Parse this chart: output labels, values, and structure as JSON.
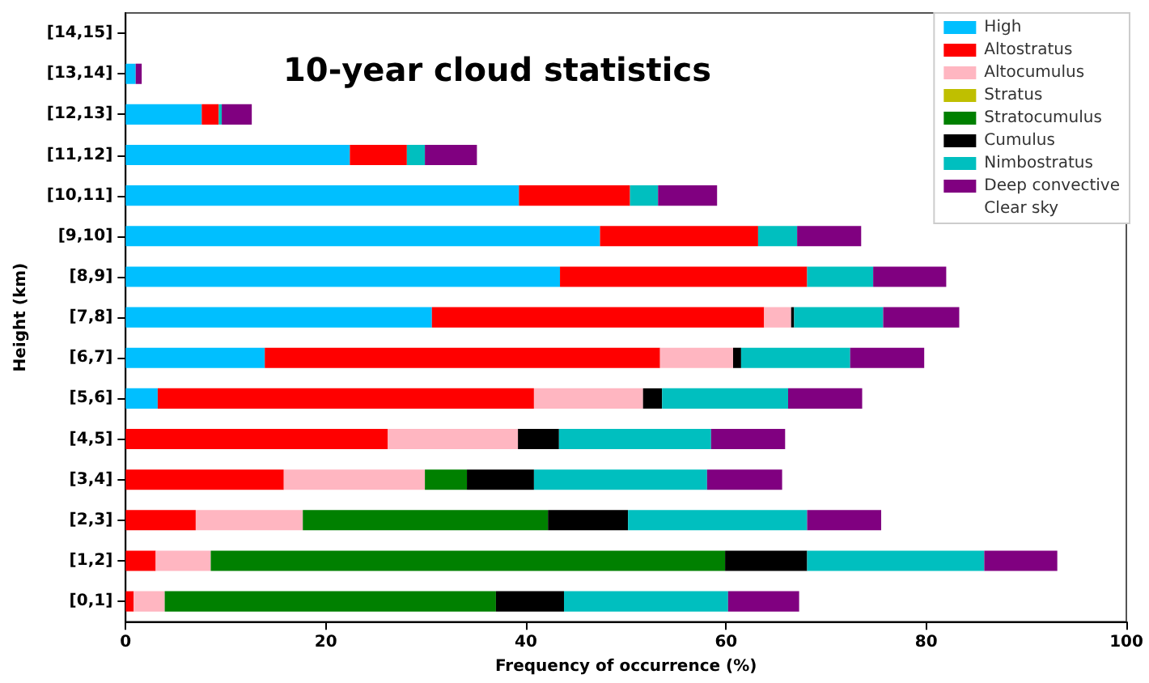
{
  "chart_data": {
    "type": "bar",
    "orientation": "horizontal",
    "stacked": true,
    "title": "10-year cloud statistics",
    "xlabel": "Frequency of occurrence (%)",
    "ylabel": "Height (km)",
    "categories": [
      "[14,15]",
      "[13,14]",
      "[12,13]",
      "[11,12]",
      "[10,11]",
      "[9,10]",
      "[8,9]",
      "[7,8]",
      "[6,7]",
      "[5,6]",
      "[4,5]",
      "[3,4]",
      "[2,3]",
      "[1,2]",
      "[0,1]"
    ],
    "series": [
      {
        "name": "High",
        "color": "#00bfff",
        "values": [
          0,
          1.0,
          7.6,
          22.4,
          39.3,
          47.4,
          43.4,
          30.6,
          13.9,
          3.2,
          0,
          0,
          0,
          0,
          0
        ]
      },
      {
        "name": "Altostratus",
        "color": "#ff0000",
        "values": [
          0,
          0,
          1.7,
          5.7,
          11.1,
          15.8,
          24.7,
          33.2,
          39.5,
          37.6,
          26.2,
          15.8,
          7.0,
          3.0,
          0.8
        ]
      },
      {
        "name": "Altocumulus",
        "color": "#ffb6c1",
        "values": [
          0,
          0,
          0,
          0,
          0,
          0,
          0,
          2.7,
          7.3,
          10.9,
          13.0,
          14.1,
          10.7,
          5.5,
          3.1
        ]
      },
      {
        "name": "Stratus",
        "color": "#bfbf00",
        "values": [
          0,
          0,
          0,
          0,
          0,
          0,
          0,
          0,
          0,
          0,
          0,
          0,
          0,
          0,
          0
        ]
      },
      {
        "name": "Stratocumulus",
        "color": "#008000",
        "values": [
          0,
          0,
          0,
          0,
          0,
          0,
          0,
          0,
          0,
          0,
          0,
          4.2,
          24.5,
          51.4,
          33.1
        ]
      },
      {
        "name": "Cumulus",
        "color": "#000000",
        "values": [
          0,
          0,
          0,
          0,
          0,
          0,
          0,
          0.3,
          0.8,
          1.9,
          4.1,
          6.7,
          8.0,
          8.2,
          6.8
        ]
      },
      {
        "name": "Nimbostratus",
        "color": "#00bfbf",
        "values": [
          0,
          0,
          0.3,
          1.8,
          2.8,
          3.9,
          6.6,
          8.9,
          10.9,
          12.6,
          15.2,
          17.3,
          17.9,
          17.7,
          16.4
        ]
      },
      {
        "name": "Deep convective",
        "color": "#800080",
        "values": [
          0,
          0.6,
          3.0,
          5.2,
          5.9,
          6.4,
          7.3,
          7.6,
          7.4,
          7.4,
          7.4,
          7.5,
          7.4,
          7.3,
          7.1
        ]
      },
      {
        "name": "Clear sky",
        "values": [
          null,
          null,
          null,
          null,
          null,
          null,
          null,
          null,
          null,
          null,
          null,
          null,
          null,
          null,
          null
        ]
      }
    ],
    "xlim": [
      0,
      100
    ],
    "xticks": [
      0,
      20,
      40,
      60,
      80,
      100
    ],
    "grid": false,
    "legend": "top right"
  }
}
